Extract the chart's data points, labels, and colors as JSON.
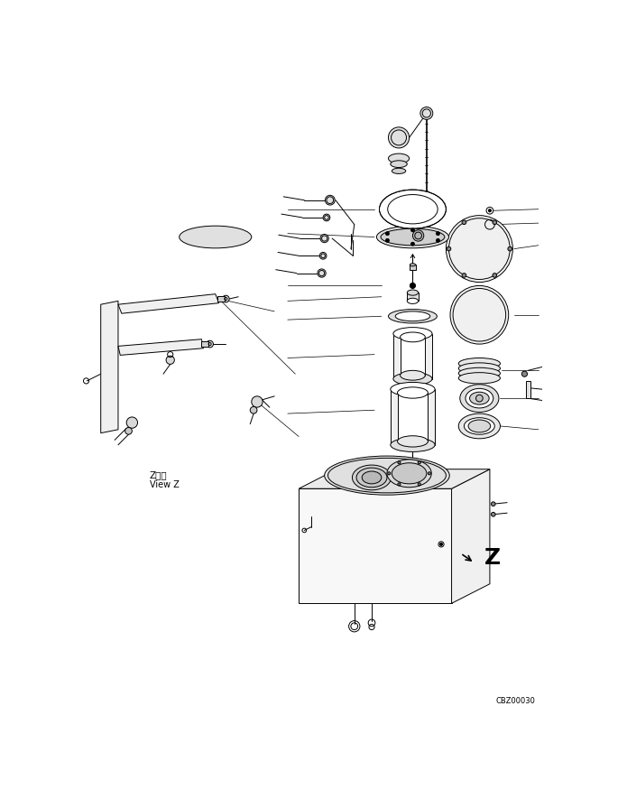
{
  "bg_color": "#ffffff",
  "line_color": "#000000",
  "lw": 0.7,
  "fig_width": 6.95,
  "fig_height": 8.85,
  "dpi": 100,
  "watermark": "CBZ00030",
  "view_cn": "Z视图",
  "view_en": "View Z",
  "z_label": "Z"
}
